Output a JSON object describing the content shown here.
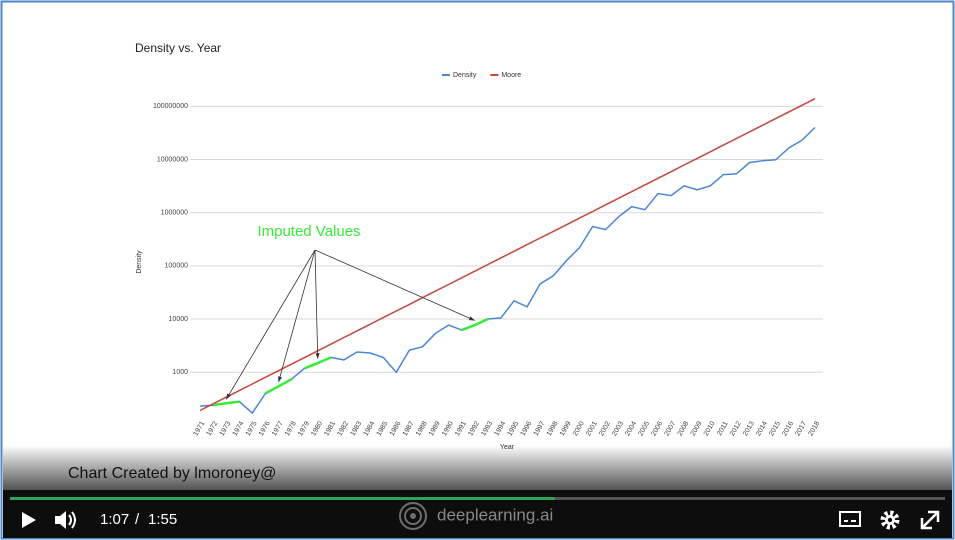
{
  "chart_data": {
    "type": "line",
    "title": "Density vs. Year",
    "xlabel": "Year",
    "ylabel": "Density",
    "log_scale": true,
    "grid": true,
    "legend": "top",
    "categories": [
      "1971",
      "1972",
      "1973",
      "1974",
      "1975",
      "1976",
      "1977",
      "1978",
      "1979",
      "1980",
      "1981",
      "1982",
      "1983",
      "1984",
      "1985",
      "1986",
      "1987",
      "1988",
      "1989",
      "1990",
      "1991",
      "1992",
      "1993",
      "1994",
      "1995",
      "1996",
      "1997",
      "1998",
      "1999",
      "2000",
      "2001",
      "2002",
      "2003",
      "2004",
      "2005",
      "2006",
      "2007",
      "2008",
      "2009",
      "2010",
      "2011",
      "2012",
      "2013",
      "2014",
      "2015",
      "2016",
      "2017",
      "2018"
    ],
    "series": [
      {
        "name": "Density",
        "color": "#4a86d8",
        "values": [
          230,
          240,
          260,
          280,
          170,
          400,
          540,
          740,
          1190,
          1480,
          1900,
          1700,
          2400,
          2300,
          1900,
          1000,
          2600,
          3000,
          5400,
          7700,
          6200,
          7700,
          10000,
          10500,
          22000,
          17000,
          46000,
          65000,
          125000,
          220000,
          550000,
          480000,
          840000,
          1300000,
          1140000,
          2300000,
          2100000,
          3200000,
          2700000,
          3200000,
          5200000,
          5400000,
          8800000,
          9500000,
          9900000,
          16500000,
          23000000,
          40000000
        ]
      },
      {
        "name": "Moore",
        "color": "#c8453a",
        "values": [
          190,
          254,
          338,
          450,
          600,
          800,
          1067,
          1422,
          1894,
          2524,
          3366,
          4486,
          5980,
          7970,
          10620,
          14160,
          18880,
          25160,
          33500,
          44700,
          59600,
          79400,
          105900,
          141000,
          188000,
          251000,
          334000,
          445000,
          593000,
          791000,
          1054000,
          1406000,
          1874000,
          2497000,
          3329000,
          4437000,
          5915000,
          7885000,
          10500000,
          14000000,
          18670000,
          24890000,
          33180000,
          44200000,
          58900000,
          78600000,
          104700000,
          139600000
        ]
      }
    ],
    "ylim": [
      150,
      150000000
    ],
    "yticks": [
      1000,
      10000,
      100000,
      1000000,
      10000000,
      100000000
    ],
    "annotation": {
      "text": "Imputed Values",
      "color": "#33ee33",
      "ranges": [
        [
          "1972",
          "1974"
        ],
        [
          "1976",
          "1978"
        ],
        [
          "1979",
          "1981"
        ],
        [
          "1991",
          "1993"
        ]
      ]
    }
  },
  "player": {
    "caption": "Chart Created by lmoroney@",
    "current_time": "1:07",
    "separator": "/",
    "duration": "1:55",
    "brand": "deeplearning.ai"
  }
}
